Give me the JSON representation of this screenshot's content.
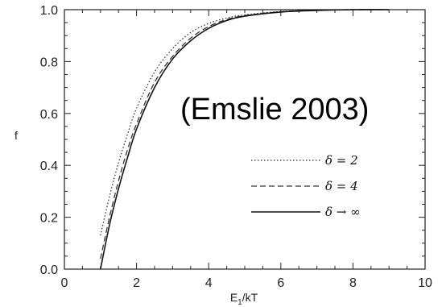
{
  "chart_data": {
    "type": "line",
    "title": "",
    "xlabel": "E₁/kT",
    "ylabel": "f",
    "xlim": [
      0,
      10
    ],
    "ylim": [
      0,
      1.0
    ],
    "x_ticks": [
      "0",
      "2",
      "4",
      "6",
      "8",
      "10"
    ],
    "y_ticks": [
      "0.0",
      "0.2",
      "0.4",
      "0.6",
      "0.8",
      "1.0"
    ],
    "grid": false,
    "legend_position": "lower-right",
    "annotation": "(Emslie 2003)",
    "series": [
      {
        "name": "δ = 2",
        "style": "dotted",
        "x": [
          1.0,
          1.25,
          1.5,
          1.75,
          2.0,
          2.5,
          3.0,
          3.5,
          4.0,
          4.5,
          5.0,
          6.0,
          7.0,
          8.0,
          9.0
        ],
        "y": [
          0.13,
          0.28,
          0.41,
          0.52,
          0.62,
          0.76,
          0.85,
          0.912,
          0.947,
          0.968,
          0.98,
          0.993,
          0.998,
          1.0,
          1.0
        ]
      },
      {
        "name": "δ = 4",
        "style": "dashed",
        "x": [
          1.0,
          1.25,
          1.5,
          1.75,
          2.0,
          2.5,
          3.0,
          3.5,
          4.0,
          4.5,
          5.0,
          6.0,
          7.0,
          8.0,
          9.0
        ],
        "y": [
          0.04,
          0.2,
          0.34,
          0.46,
          0.56,
          0.72,
          0.82,
          0.89,
          0.935,
          0.962,
          0.977,
          0.992,
          0.998,
          1.0,
          1.0
        ]
      },
      {
        "name": "δ → ∞",
        "style": "solid",
        "x": [
          1.0,
          1.25,
          1.5,
          1.75,
          2.0,
          2.5,
          3.0,
          3.5,
          4.0,
          4.5,
          5.0,
          6.0,
          7.0,
          8.0,
          9.0
        ],
        "y": [
          0.0,
          0.17,
          0.31,
          0.43,
          0.54,
          0.7,
          0.81,
          0.88,
          0.928,
          0.958,
          0.975,
          0.991,
          0.997,
          1.0,
          1.0
        ]
      }
    ]
  },
  "legend_labels": {
    "d2": "δ = 2",
    "d4": "δ = 4",
    "dinf": "δ → ∞"
  }
}
